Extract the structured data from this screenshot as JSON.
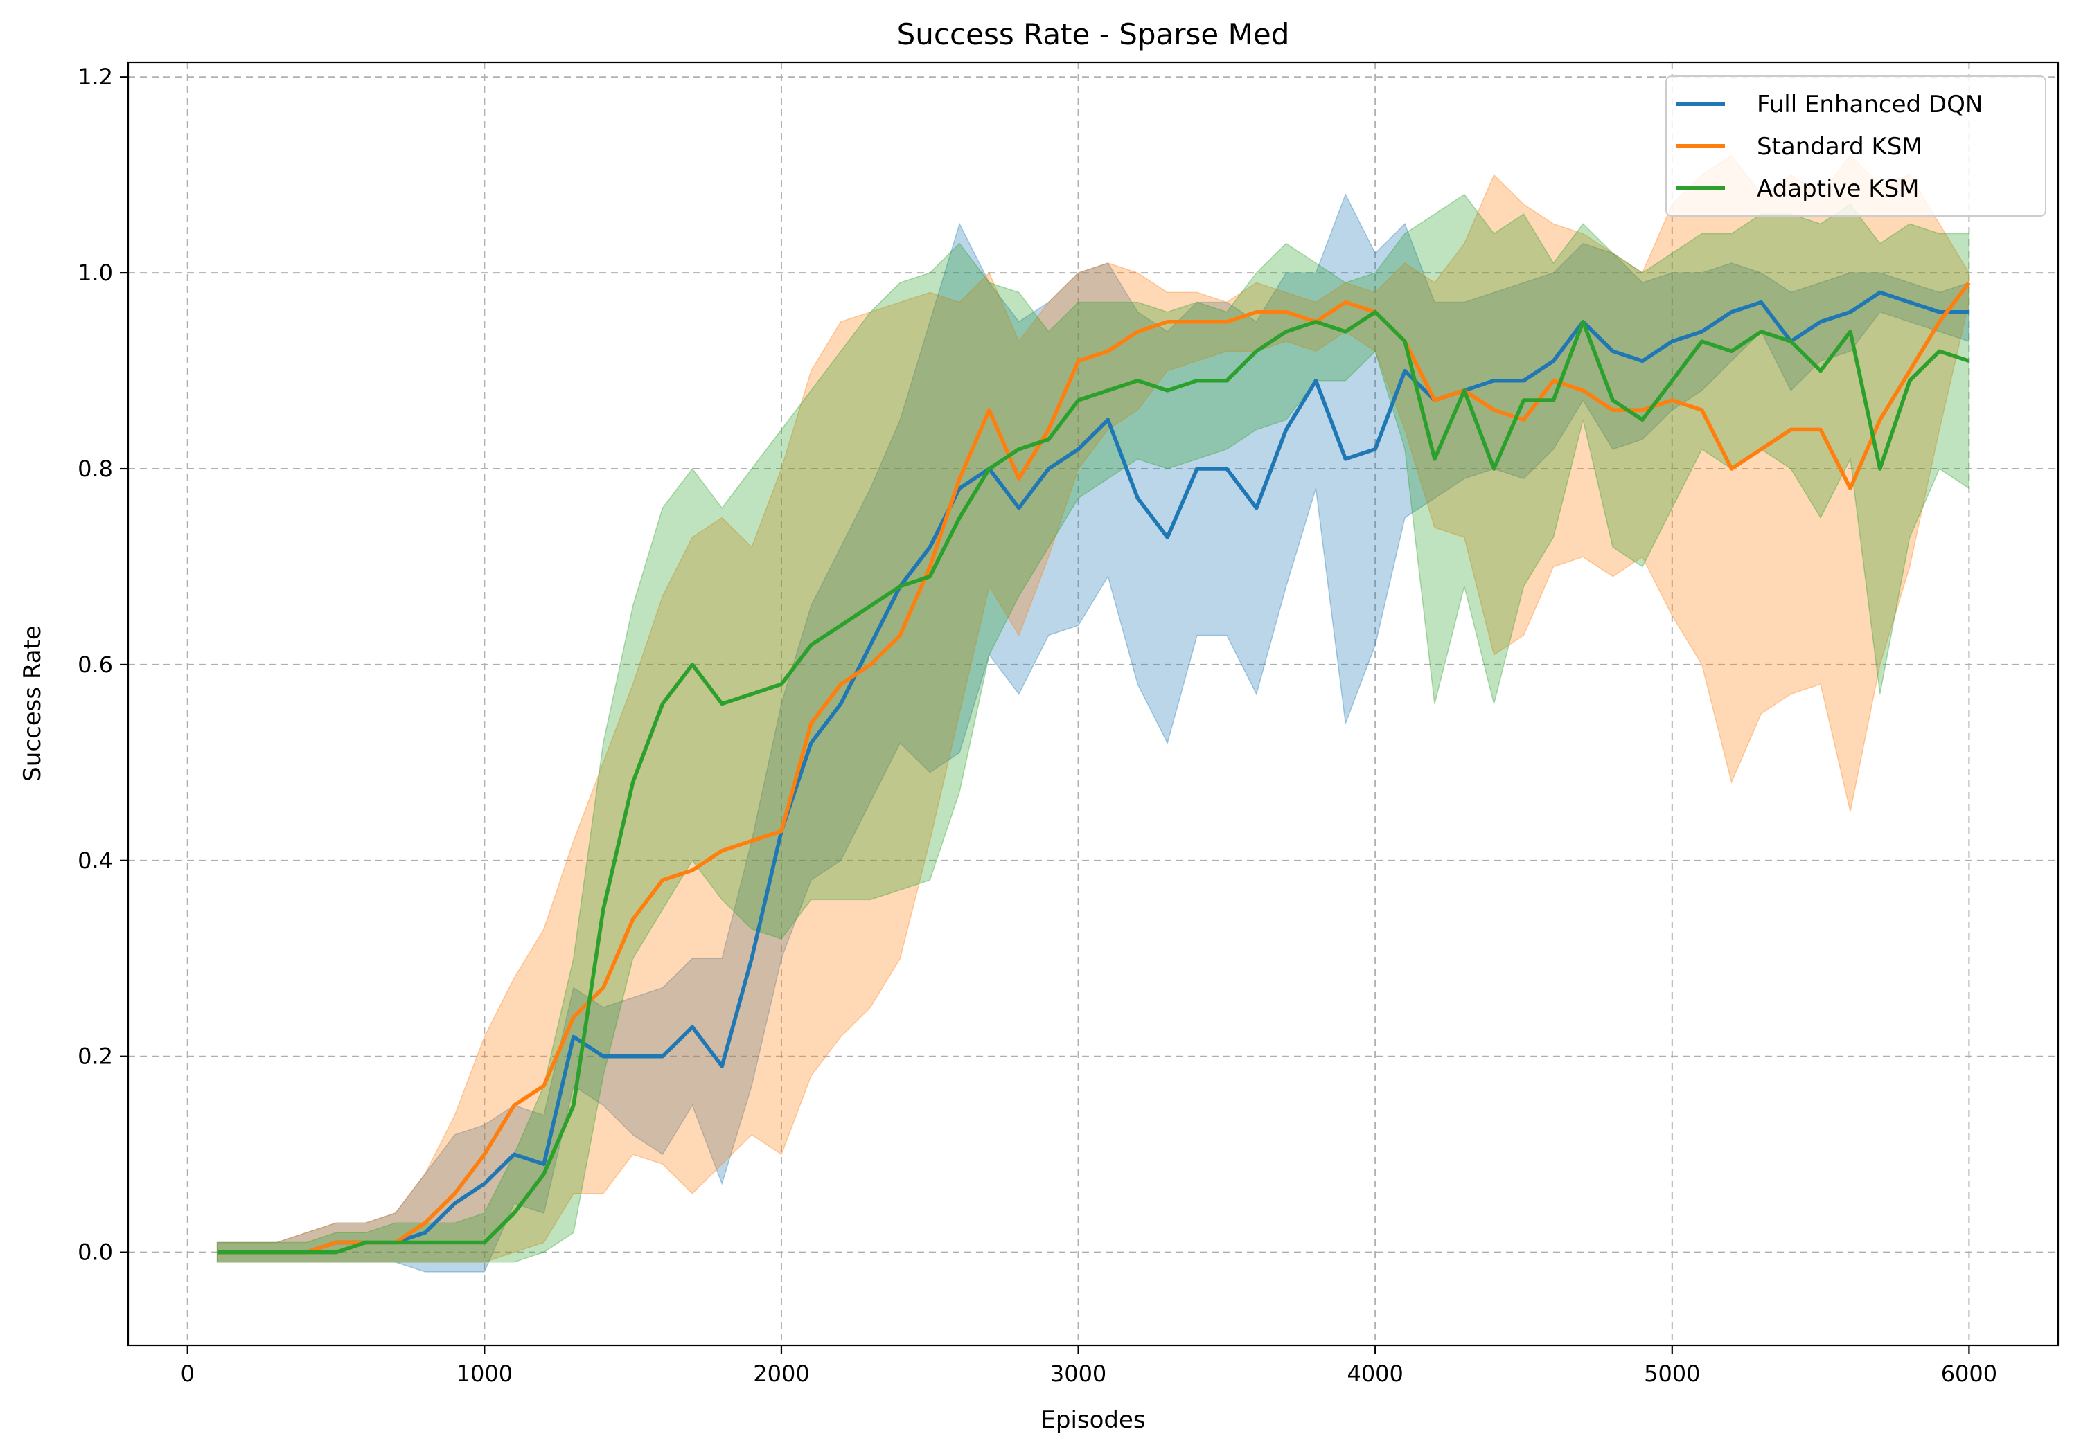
{
  "chart_data": {
    "type": "line",
    "title": "Success Rate - Sparse Med",
    "xlabel": "Episodes",
    "ylabel": "Success Rate",
    "xlim": [
      -200,
      6300
    ],
    "ylim": [
      -0.095,
      1.215
    ],
    "xticks": [
      0,
      1000,
      2000,
      3000,
      4000,
      5000,
      6000
    ],
    "yticks": [
      0.0,
      0.2,
      0.4,
      0.6,
      0.8,
      1.0,
      1.2
    ],
    "xtick_labels": [
      "0",
      "1000",
      "2000",
      "3000",
      "4000",
      "5000",
      "6000"
    ],
    "ytick_labels": [
      "0.0",
      "0.2",
      "0.4",
      "0.6",
      "0.8",
      "1.0",
      "1.2"
    ],
    "grid": true,
    "legend_position": "top-right",
    "x": [
      100,
      200,
      300,
      400,
      500,
      600,
      700,
      800,
      900,
      1000,
      1100,
      1200,
      1300,
      1400,
      1500,
      1600,
      1700,
      1800,
      1900,
      2000,
      2100,
      2200,
      2300,
      2400,
      2500,
      2600,
      2700,
      2800,
      2900,
      3000,
      3100,
      3200,
      3300,
      3400,
      3500,
      3600,
      3700,
      3800,
      3900,
      4000,
      4100,
      4200,
      4300,
      4400,
      4500,
      4600,
      4700,
      4800,
      4900,
      5000,
      5100,
      5200,
      5300,
      5400,
      5500,
      5600,
      5700,
      5800,
      5900,
      6000
    ],
    "series": [
      {
        "name": "Full Enhanced DQN",
        "color": "#1f77b4",
        "mean": [
          0.0,
          0.0,
          0.0,
          0.0,
          0.01,
          0.01,
          0.01,
          0.02,
          0.05,
          0.07,
          0.1,
          0.09,
          0.22,
          0.2,
          0.2,
          0.2,
          0.23,
          0.19,
          0.3,
          0.43,
          0.52,
          0.56,
          0.62,
          0.68,
          0.72,
          0.78,
          0.8,
          0.76,
          0.8,
          0.82,
          0.85,
          0.77,
          0.73,
          0.8,
          0.8,
          0.76,
          0.84,
          0.89,
          0.81,
          0.82,
          0.9,
          0.87,
          0.88,
          0.89,
          0.89,
          0.91,
          0.95,
          0.92,
          0.91,
          0.93,
          0.94,
          0.96,
          0.97,
          0.93,
          0.95,
          0.96,
          0.98,
          0.97,
          0.96,
          0.96
        ],
        "upper": [
          0.01,
          0.01,
          0.01,
          0.02,
          0.03,
          0.03,
          0.04,
          0.08,
          0.12,
          0.13,
          0.15,
          0.14,
          0.27,
          0.25,
          0.26,
          0.27,
          0.3,
          0.3,
          0.42,
          0.56,
          0.66,
          0.72,
          0.78,
          0.85,
          0.95,
          1.05,
          0.99,
          0.95,
          0.97,
          1.0,
          1.01,
          0.96,
          0.94,
          0.97,
          0.97,
          0.95,
          1.0,
          1.0,
          1.08,
          1.02,
          1.05,
          0.97,
          0.97,
          0.98,
          0.99,
          1.0,
          1.03,
          1.02,
          0.99,
          1.0,
          1.0,
          1.01,
          1.0,
          0.98,
          0.99,
          1.0,
          1.0,
          0.99,
          0.98,
          0.99
        ],
        "lower": [
          -0.01,
          -0.01,
          -0.01,
          -0.01,
          -0.01,
          -0.01,
          -0.01,
          -0.02,
          -0.02,
          -0.02,
          0.05,
          0.04,
          0.17,
          0.15,
          0.12,
          0.1,
          0.15,
          0.07,
          0.17,
          0.3,
          0.38,
          0.4,
          0.46,
          0.52,
          0.49,
          0.51,
          0.61,
          0.57,
          0.63,
          0.64,
          0.69,
          0.58,
          0.52,
          0.63,
          0.63,
          0.57,
          0.68,
          0.78,
          0.54,
          0.62,
          0.75,
          0.77,
          0.79,
          0.8,
          0.79,
          0.82,
          0.87,
          0.82,
          0.83,
          0.86,
          0.88,
          0.91,
          0.94,
          0.88,
          0.91,
          0.92,
          0.96,
          0.95,
          0.94,
          0.93
        ]
      },
      {
        "name": "Standard KSM",
        "color": "#ff7f0e",
        "mean": [
          0.0,
          0.0,
          0.0,
          0.0,
          0.01,
          0.01,
          0.01,
          0.03,
          0.06,
          0.1,
          0.15,
          0.17,
          0.24,
          0.27,
          0.34,
          0.38,
          0.39,
          0.41,
          0.42,
          0.43,
          0.54,
          0.58,
          0.6,
          0.63,
          0.7,
          0.79,
          0.86,
          0.79,
          0.84,
          0.91,
          0.92,
          0.94,
          0.95,
          0.95,
          0.95,
          0.96,
          0.96,
          0.95,
          0.97,
          0.96,
          0.93,
          0.87,
          0.88,
          0.86,
          0.85,
          0.89,
          0.88,
          0.86,
          0.86,
          0.87,
          0.86,
          0.8,
          0.82,
          0.84,
          0.84,
          0.78,
          0.85,
          0.9,
          0.95,
          0.99
        ],
        "upper": [
          0.01,
          0.01,
          0.01,
          0.02,
          0.03,
          0.03,
          0.04,
          0.08,
          0.14,
          0.22,
          0.28,
          0.33,
          0.42,
          0.5,
          0.58,
          0.67,
          0.73,
          0.75,
          0.72,
          0.8,
          0.9,
          0.95,
          0.96,
          0.97,
          0.98,
          0.97,
          1.0,
          0.93,
          0.97,
          1.0,
          1.01,
          1.0,
          0.98,
          0.98,
          0.97,
          0.99,
          0.98,
          0.97,
          0.99,
          0.98,
          1.01,
          0.99,
          1.03,
          1.1,
          1.07,
          1.05,
          1.04,
          1.02,
          1.0,
          1.07,
          1.1,
          1.12,
          1.08,
          1.1,
          1.08,
          1.12,
          1.09,
          1.1,
          1.05,
          1.0
        ],
        "lower": [
          -0.01,
          -0.01,
          -0.01,
          -0.01,
          -0.01,
          -0.01,
          -0.01,
          -0.01,
          -0.01,
          -0.01,
          0.0,
          0.01,
          0.06,
          0.06,
          0.1,
          0.09,
          0.06,
          0.09,
          0.12,
          0.1,
          0.18,
          0.22,
          0.25,
          0.3,
          0.42,
          0.55,
          0.68,
          0.63,
          0.71,
          0.8,
          0.84,
          0.86,
          0.9,
          0.91,
          0.92,
          0.92,
          0.93,
          0.92,
          0.94,
          0.92,
          0.84,
          0.74,
          0.73,
          0.61,
          0.63,
          0.7,
          0.71,
          0.69,
          0.71,
          0.65,
          0.6,
          0.48,
          0.55,
          0.57,
          0.58,
          0.45,
          0.6,
          0.7,
          0.84,
          0.97
        ]
      },
      {
        "name": "Adaptive KSM",
        "color": "#2ca02c",
        "mean": [
          0.0,
          0.0,
          0.0,
          0.0,
          0.0,
          0.01,
          0.01,
          0.01,
          0.01,
          0.01,
          0.04,
          0.08,
          0.15,
          0.35,
          0.48,
          0.56,
          0.6,
          0.56,
          0.57,
          0.58,
          0.62,
          0.64,
          0.66,
          0.68,
          0.69,
          0.75,
          0.8,
          0.82,
          0.83,
          0.87,
          0.88,
          0.89,
          0.88,
          0.89,
          0.89,
          0.92,
          0.94,
          0.95,
          0.94,
          0.96,
          0.93,
          0.81,
          0.88,
          0.8,
          0.87,
          0.87,
          0.95,
          0.87,
          0.85,
          0.89,
          0.93,
          0.92,
          0.94,
          0.93,
          0.9,
          0.94,
          0.8,
          0.89,
          0.92,
          0.91
        ],
        "upper": [
          0.01,
          0.01,
          0.01,
          0.01,
          0.02,
          0.02,
          0.03,
          0.03,
          0.03,
          0.04,
          0.1,
          0.17,
          0.3,
          0.52,
          0.66,
          0.76,
          0.8,
          0.76,
          0.8,
          0.84,
          0.88,
          0.92,
          0.96,
          0.99,
          1.0,
          1.03,
          0.99,
          0.98,
          0.94,
          0.97,
          0.97,
          0.97,
          0.96,
          0.97,
          0.96,
          1.0,
          1.03,
          1.01,
          0.99,
          1.0,
          1.04,
          1.06,
          1.08,
          1.04,
          1.06,
          1.01,
          1.05,
          1.02,
          1.0,
          1.02,
          1.04,
          1.04,
          1.06,
          1.06,
          1.05,
          1.07,
          1.03,
          1.05,
          1.04,
          1.04
        ],
        "lower": [
          -0.01,
          -0.01,
          -0.01,
          -0.01,
          -0.01,
          -0.01,
          -0.01,
          -0.01,
          -0.01,
          -0.01,
          -0.01,
          0.0,
          0.02,
          0.18,
          0.3,
          0.35,
          0.4,
          0.36,
          0.33,
          0.32,
          0.36,
          0.36,
          0.36,
          0.37,
          0.38,
          0.47,
          0.61,
          0.67,
          0.72,
          0.77,
          0.79,
          0.81,
          0.8,
          0.81,
          0.82,
          0.84,
          0.85,
          0.89,
          0.89,
          0.92,
          0.82,
          0.56,
          0.68,
          0.56,
          0.68,
          0.73,
          0.85,
          0.72,
          0.7,
          0.76,
          0.82,
          0.8,
          0.82,
          0.8,
          0.75,
          0.81,
          0.57,
          0.73,
          0.8,
          0.78
        ]
      }
    ]
  }
}
